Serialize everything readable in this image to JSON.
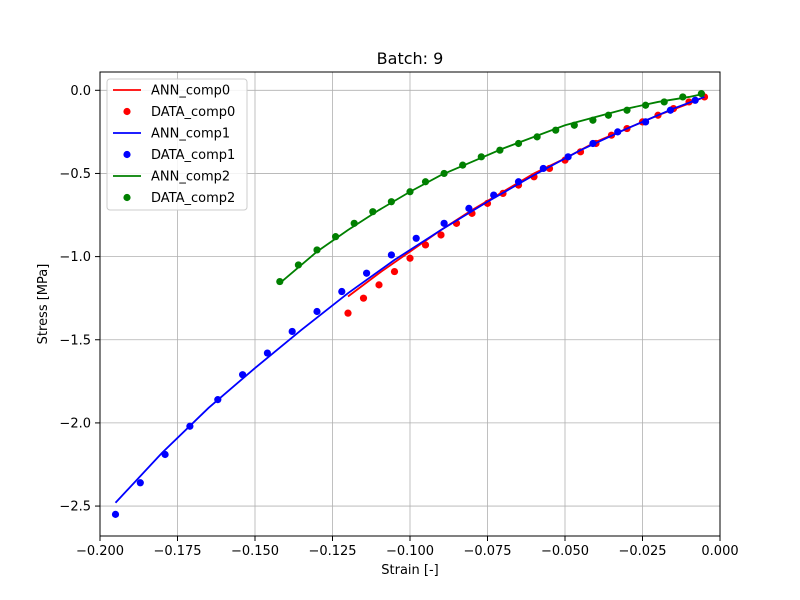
{
  "chart_data": {
    "type": "scatter",
    "title": "Batch: 9",
    "xlabel": "Strain [-]",
    "ylabel": "Stress [MPa]",
    "xlim": [
      -0.2,
      0.0
    ],
    "ylim": [
      -2.68,
      0.11
    ],
    "xticks": [
      -0.2,
      -0.175,
      -0.15,
      -0.125,
      -0.1,
      -0.075,
      -0.05,
      -0.025,
      0.0
    ],
    "xtick_labels": [
      "−0.200",
      "−0.175",
      "−0.150",
      "−0.125",
      "−0.100",
      "−0.075",
      "−0.050",
      "−0.025",
      "0.000"
    ],
    "yticks": [
      0.0,
      -0.5,
      -1.0,
      -1.5,
      -2.0,
      -2.5
    ],
    "ytick_labels": [
      "0.0",
      "−0.5",
      "−1.0",
      "−1.5",
      "−2.0",
      "−2.5"
    ],
    "grid": true,
    "legend_position": "top-left",
    "series": [
      {
        "name": "ANN_comp0",
        "kind": "line",
        "color": "#ff0000",
        "x": [
          -0.12,
          -0.11,
          -0.1,
          -0.09,
          -0.08,
          -0.07,
          -0.06,
          -0.05,
          -0.04,
          -0.03,
          -0.02,
          -0.01,
          -0.005
        ],
        "y": [
          -1.24,
          -1.1,
          -0.97,
          -0.84,
          -0.72,
          -0.61,
          -0.5,
          -0.41,
          -0.31,
          -0.23,
          -0.15,
          -0.08,
          -0.04
        ]
      },
      {
        "name": "DATA_comp0",
        "kind": "scatter",
        "color": "#ff0000",
        "x": [
          -0.12,
          -0.115,
          -0.11,
          -0.105,
          -0.1,
          -0.095,
          -0.09,
          -0.085,
          -0.08,
          -0.075,
          -0.07,
          -0.065,
          -0.06,
          -0.055,
          -0.05,
          -0.045,
          -0.04,
          -0.035,
          -0.03,
          -0.025,
          -0.02,
          -0.015,
          -0.01,
          -0.005
        ],
        "y": [
          -1.34,
          -1.25,
          -1.17,
          -1.09,
          -1.01,
          -0.93,
          -0.87,
          -0.8,
          -0.74,
          -0.68,
          -0.62,
          -0.57,
          -0.52,
          -0.47,
          -0.42,
          -0.37,
          -0.32,
          -0.27,
          -0.23,
          -0.19,
          -0.15,
          -0.11,
          -0.07,
          -0.04
        ]
      },
      {
        "name": "ANN_comp1",
        "kind": "line",
        "color": "#0000ff",
        "x": [
          -0.195,
          -0.18,
          -0.165,
          -0.15,
          -0.135,
          -0.12,
          -0.105,
          -0.09,
          -0.075,
          -0.06,
          -0.045,
          -0.03,
          -0.015,
          -0.005
        ],
        "y": [
          -2.48,
          -2.18,
          -1.91,
          -1.67,
          -1.44,
          -1.22,
          -1.02,
          -0.84,
          -0.67,
          -0.51,
          -0.36,
          -0.23,
          -0.11,
          -0.04
        ]
      },
      {
        "name": "DATA_comp1",
        "kind": "scatter",
        "color": "#0000ff",
        "x": [
          -0.195,
          -0.187,
          -0.179,
          -0.171,
          -0.162,
          -0.154,
          -0.146,
          -0.138,
          -0.13,
          -0.122,
          -0.114,
          -0.106,
          -0.098,
          -0.089,
          -0.081,
          -0.073,
          -0.065,
          -0.057,
          -0.049,
          -0.041,
          -0.033,
          -0.024,
          -0.016,
          -0.008
        ],
        "y": [
          -2.55,
          -2.36,
          -2.19,
          -2.02,
          -1.86,
          -1.71,
          -1.58,
          -1.45,
          -1.33,
          -1.21,
          -1.1,
          -0.99,
          -0.89,
          -0.8,
          -0.71,
          -0.63,
          -0.55,
          -0.47,
          -0.4,
          -0.32,
          -0.25,
          -0.19,
          -0.12,
          -0.06
        ]
      },
      {
        "name": "ANN_comp2",
        "kind": "line",
        "color": "#008000",
        "x": [
          -0.142,
          -0.13,
          -0.12,
          -0.11,
          -0.1,
          -0.09,
          -0.08,
          -0.07,
          -0.06,
          -0.05,
          -0.04,
          -0.03,
          -0.02,
          -0.01,
          -0.005
        ],
        "y": [
          -1.16,
          -0.97,
          -0.84,
          -0.72,
          -0.61,
          -0.51,
          -0.43,
          -0.35,
          -0.28,
          -0.21,
          -0.16,
          -0.11,
          -0.07,
          -0.04,
          -0.02
        ]
      },
      {
        "name": "DATA_comp2",
        "kind": "scatter",
        "color": "#008000",
        "x": [
          -0.142,
          -0.136,
          -0.13,
          -0.124,
          -0.118,
          -0.112,
          -0.106,
          -0.1,
          -0.095,
          -0.089,
          -0.083,
          -0.077,
          -0.071,
          -0.065,
          -0.059,
          -0.053,
          -0.047,
          -0.041,
          -0.036,
          -0.03,
          -0.024,
          -0.018,
          -0.012,
          -0.006
        ],
        "y": [
          -1.15,
          -1.05,
          -0.96,
          -0.88,
          -0.8,
          -0.73,
          -0.67,
          -0.61,
          -0.55,
          -0.5,
          -0.45,
          -0.4,
          -0.36,
          -0.32,
          -0.28,
          -0.24,
          -0.21,
          -0.18,
          -0.15,
          -0.12,
          -0.09,
          -0.07,
          -0.04,
          -0.02
        ]
      }
    ]
  }
}
